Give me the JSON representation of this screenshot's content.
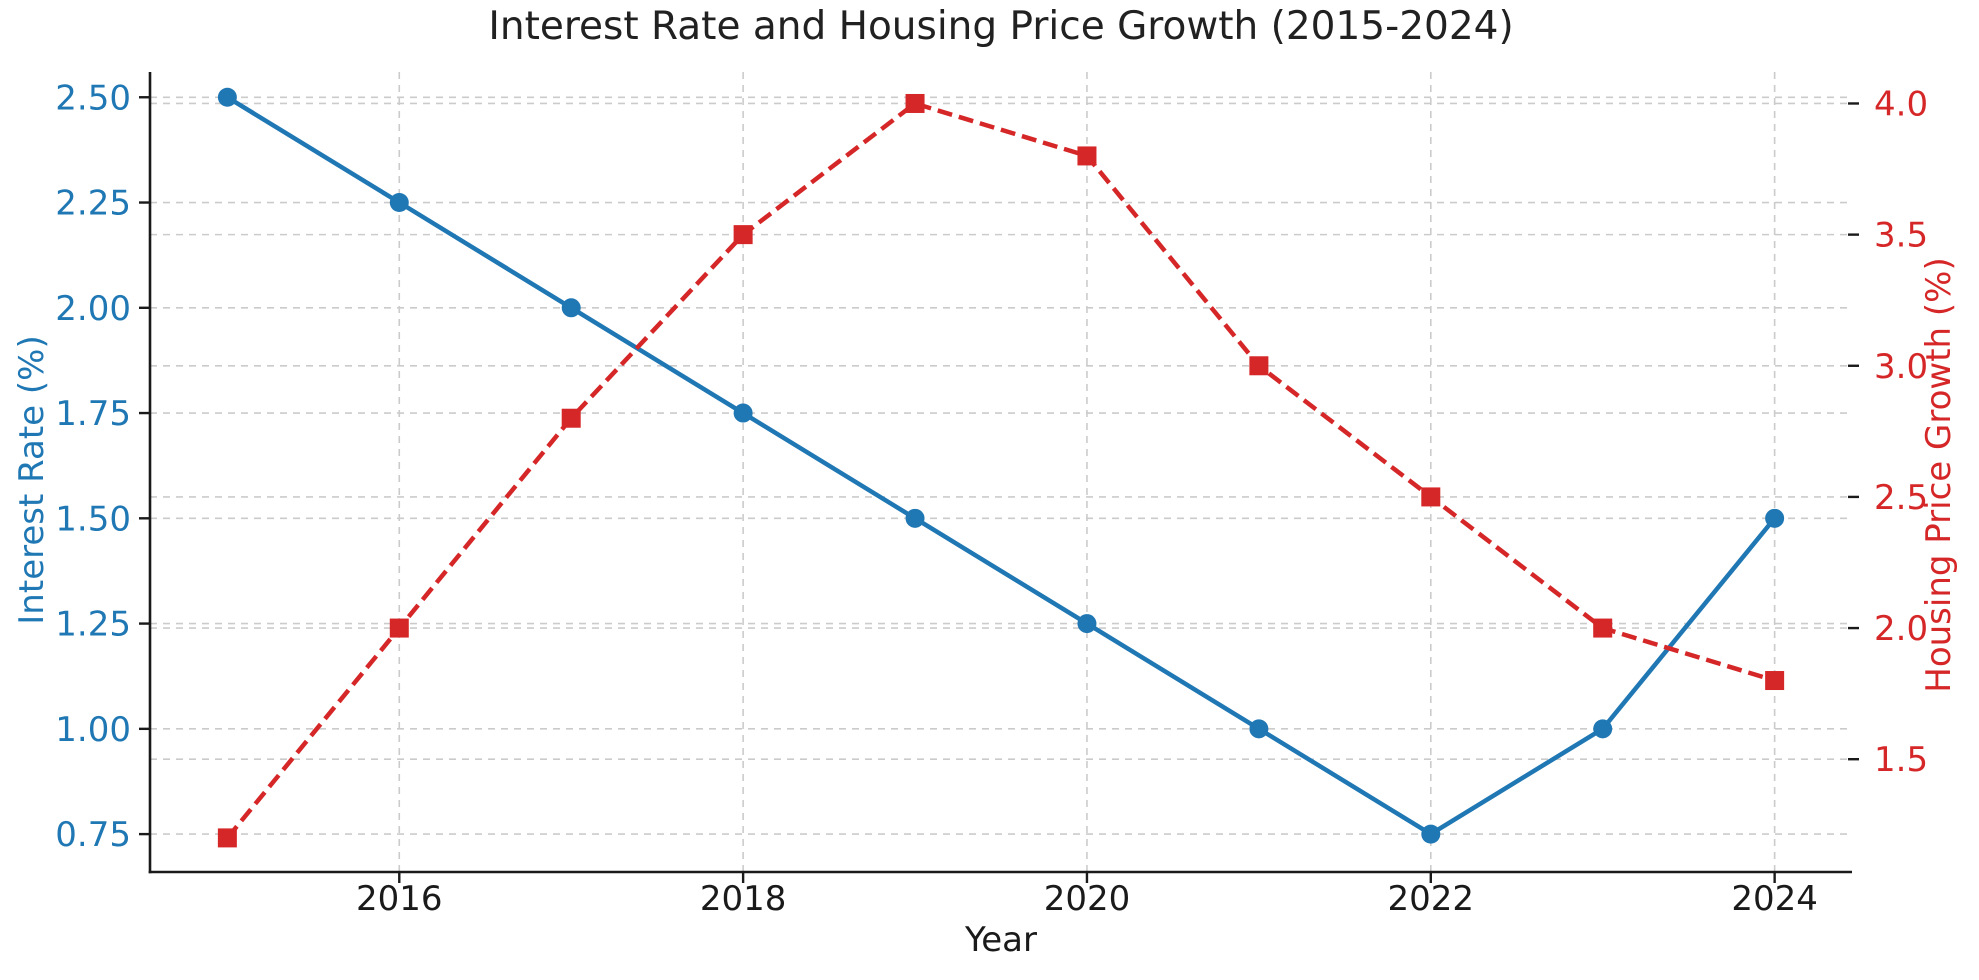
{
  "figure": {
    "background": "#ffffff",
    "spine_color": "#1a1a1a",
    "tick_mark_color": "#1a1a1a"
  },
  "chart_data": {
    "type": "line",
    "title": "Interest Rate and Housing Price Growth (2015-2024)",
    "x": [
      2015,
      2016,
      2017,
      2018,
      2019,
      2020,
      2021,
      2022,
      2023,
      2024
    ],
    "series": [
      {
        "name": "Interest Rate (%)",
        "axis": "left",
        "color": "#1f77b4",
        "line_style": "solid",
        "marker": "circle",
        "values": [
          2.5,
          2.25,
          2.0,
          1.75,
          1.5,
          1.25,
          1.0,
          0.75,
          1.0,
          1.5
        ]
      },
      {
        "name": "Housing Price Growth (%)",
        "axis": "right",
        "color": "#d62728",
        "line_style": "dashed",
        "marker": "square",
        "values": [
          1.2,
          2.0,
          2.8,
          3.5,
          4.0,
          3.8,
          3.0,
          2.5,
          2.0,
          1.8
        ]
      }
    ],
    "axes": {
      "x": {
        "label": "Year",
        "ticks": [
          2016,
          2018,
          2020,
          2022,
          2024
        ],
        "tick_labels": [
          "2016",
          "2018",
          "2020",
          "2022",
          "2024"
        ],
        "lim": [
          2014.55,
          2024.45
        ],
        "tick_label_color": "#1a1a1a"
      },
      "left": {
        "label": "Interest Rate (%)",
        "ticks": [
          2.5,
          2.25,
          2.0,
          1.75,
          1.5,
          1.25,
          1.0,
          0.75
        ],
        "tick_labels": [
          "2.50",
          "2.25",
          "2.00",
          "1.75",
          "1.50",
          "1.25",
          "1.00",
          "0.75"
        ],
        "lim": [
          0.66,
          2.56
        ],
        "tick_label_color": "#1f77b4"
      },
      "right": {
        "label": "Housing Price Growth (%)",
        "ticks": [
          4.0,
          3.5,
          3.0,
          2.5,
          2.0,
          1.5
        ],
        "tick_labels": [
          "4.0",
          "3.5",
          "3.0",
          "2.5",
          "2.0",
          "1.5"
        ],
        "lim": [
          1.07,
          4.12
        ],
        "tick_label_color": "#d62728"
      }
    },
    "grid": {
      "on": true,
      "color": "#cbcbcb",
      "style": "dashed"
    },
    "legend": null
  }
}
